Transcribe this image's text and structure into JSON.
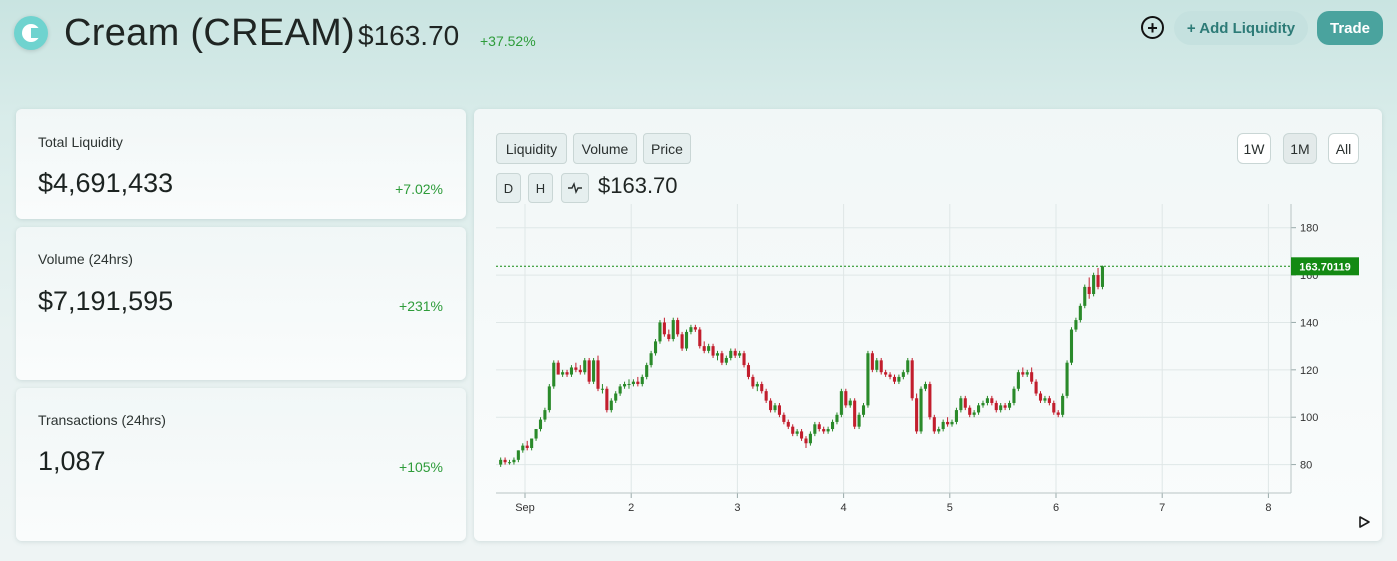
{
  "header": {
    "title": "Cream (CREAM)",
    "price": "$163.70",
    "change": "+37.52%",
    "add_liquidity_label": "+ Add Liquidity",
    "trade_label": "Trade",
    "plus_icon": "plus-circle-icon",
    "logo_icon": "cream-logo-icon"
  },
  "stats": [
    {
      "label": "Total Liquidity",
      "value": "$4,691,433",
      "change": "+7.02%"
    },
    {
      "label": "Volume (24hrs)",
      "value": "$7,191,595",
      "change": "+231%"
    },
    {
      "label": "Transactions (24hrs)",
      "value": "1,087",
      "change": "+105%"
    }
  ],
  "chart_panel": {
    "tabs": [
      "Liquidity",
      "Volume",
      "Price"
    ],
    "intervals": [
      "D",
      "H"
    ],
    "line_icon": "line-chart-icon",
    "ranges": [
      "1W",
      "1M",
      "All"
    ],
    "active_range": "1M",
    "price": "$163.70",
    "last_price_label": "163.70119",
    "play_icon": "play-icon",
    "colors": {
      "up": "#2a8a2a",
      "down": "#c21e2d",
      "last_price_tag": "#138a13"
    }
  },
  "chart_data": {
    "type": "candlestick",
    "title": "",
    "xlabel": "",
    "ylabel": "",
    "x_ticks": [
      "Sep",
      "2",
      "3",
      "4",
      "5",
      "6",
      "7",
      "8"
    ],
    "y_ticks": [
      80,
      100,
      120,
      140,
      160,
      180
    ],
    "ylim": [
      68,
      190
    ],
    "last_price": 163.70119,
    "grid": true,
    "candles_per_day": 24,
    "candles": [
      [
        80,
        83,
        79,
        82
      ],
      [
        82,
        83,
        80,
        81
      ],
      [
        81,
        82,
        80,
        81
      ],
      [
        81,
        83,
        80,
        82
      ],
      [
        82,
        86,
        81,
        86
      ],
      [
        86,
        89,
        85,
        88
      ],
      [
        88,
        90,
        86,
        87
      ],
      [
        87,
        91,
        86,
        91
      ],
      [
        91,
        95,
        90,
        95
      ],
      [
        95,
        100,
        94,
        99
      ],
      [
        99,
        104,
        98,
        103
      ],
      [
        103,
        114,
        102,
        113
      ],
      [
        113,
        124,
        112,
        123
      ],
      [
        123,
        124,
        118,
        118
      ],
      [
        118,
        120,
        117,
        119
      ],
      [
        119,
        120,
        117,
        118
      ],
      [
        118,
        122,
        117,
        121
      ],
      [
        121,
        123,
        119,
        120
      ],
      [
        120,
        122,
        118,
        119
      ],
      [
        119,
        125,
        118,
        124
      ],
      [
        124,
        125,
        114,
        115
      ],
      [
        115,
        125,
        114,
        124
      ],
      [
        124,
        126,
        111,
        112
      ],
      [
        112,
        114,
        110,
        112
      ],
      [
        112,
        113,
        102,
        103
      ],
      [
        103,
        108,
        102,
        107
      ],
      [
        107,
        111,
        106,
        110
      ],
      [
        110,
        114,
        109,
        113
      ],
      [
        113,
        115,
        112,
        114
      ],
      [
        114,
        116,
        112,
        114
      ],
      [
        114,
        116,
        113,
        115
      ],
      [
        115,
        117,
        113,
        114
      ],
      [
        114,
        118,
        113,
        117
      ],
      [
        117,
        123,
        116,
        122
      ],
      [
        122,
        128,
        121,
        127
      ],
      [
        127,
        133,
        126,
        132
      ],
      [
        132,
        141,
        131,
        140
      ],
      [
        140,
        142,
        134,
        135
      ],
      [
        135,
        137,
        132,
        133
      ],
      [
        133,
        142,
        132,
        141
      ],
      [
        141,
        142,
        134,
        135
      ],
      [
        135,
        136,
        128,
        129
      ],
      [
        129,
        137,
        128,
        136
      ],
      [
        136,
        139,
        135,
        138
      ],
      [
        138,
        139,
        136,
        137
      ],
      [
        137,
        138,
        129,
        130
      ],
      [
        130,
        132,
        127,
        128
      ],
      [
        128,
        131,
        127,
        130
      ],
      [
        130,
        131,
        125,
        126
      ],
      [
        126,
        128,
        124,
        127
      ],
      [
        127,
        128,
        122,
        123
      ],
      [
        123,
        126,
        122,
        125
      ],
      [
        125,
        129,
        124,
        128
      ],
      [
        128,
        129,
        125,
        126
      ],
      [
        126,
        128,
        125,
        127
      ],
      [
        127,
        128,
        121,
        122
      ],
      [
        122,
        123,
        116,
        117
      ],
      [
        117,
        118,
        112,
        113
      ],
      [
        113,
        115,
        111,
        114
      ],
      [
        114,
        115,
        110,
        111
      ],
      [
        111,
        112,
        106,
        107
      ],
      [
        107,
        108,
        102,
        103
      ],
      [
        103,
        106,
        102,
        105
      ],
      [
        105,
        106,
        100,
        101
      ],
      [
        101,
        102,
        97,
        98
      ],
      [
        98,
        99,
        95,
        96
      ],
      [
        96,
        97,
        92,
        93
      ],
      [
        93,
        95,
        92,
        94
      ],
      [
        94,
        95,
        90,
        91
      ],
      [
        91,
        92,
        87,
        89
      ],
      [
        89,
        94,
        88,
        93
      ],
      [
        93,
        98,
        92,
        97
      ],
      [
        97,
        98,
        94,
        95
      ],
      [
        95,
        96,
        93,
        94
      ],
      [
        94,
        96,
        93,
        95
      ],
      [
        95,
        99,
        94,
        98
      ],
      [
        98,
        102,
        97,
        101
      ],
      [
        101,
        112,
        100,
        111
      ],
      [
        111,
        112,
        104,
        105
      ],
      [
        105,
        108,
        104,
        107
      ],
      [
        107,
        108,
        95,
        96
      ],
      [
        96,
        102,
        95,
        101
      ],
      [
        101,
        106,
        100,
        105
      ],
      [
        105,
        128,
        104,
        127
      ],
      [
        127,
        128,
        119,
        120
      ],
      [
        120,
        125,
        119,
        124
      ],
      [
        124,
        125,
        118,
        119
      ],
      [
        119,
        120,
        117,
        118
      ],
      [
        118,
        119,
        116,
        117
      ],
      [
        117,
        118,
        114,
        115
      ],
      [
        115,
        118,
        114,
        117
      ],
      [
        117,
        120,
        116,
        119
      ],
      [
        119,
        125,
        118,
        124
      ],
      [
        124,
        125,
        107,
        108
      ],
      [
        108,
        110,
        93,
        94
      ],
      [
        94,
        113,
        93,
        112
      ],
      [
        112,
        115,
        111,
        114
      ],
      [
        114,
        115,
        99,
        100
      ],
      [
        100,
        101,
        93,
        94
      ],
      [
        94,
        96,
        93,
        95
      ],
      [
        95,
        99,
        94,
        98
      ],
      [
        98,
        100,
        96,
        97
      ],
      [
        97,
        99,
        96,
        98
      ],
      [
        98,
        104,
        97,
        103
      ],
      [
        103,
        109,
        102,
        108
      ],
      [
        108,
        109,
        103,
        104
      ],
      [
        104,
        105,
        100,
        101
      ],
      [
        101,
        103,
        100,
        102
      ],
      [
        102,
        106,
        101,
        105
      ],
      [
        105,
        107,
        104,
        106
      ],
      [
        106,
        109,
        105,
        108
      ],
      [
        108,
        109,
        105,
        106
      ],
      [
        106,
        107,
        102,
        103
      ],
      [
        103,
        106,
        102,
        105
      ],
      [
        105,
        106,
        103,
        104
      ],
      [
        104,
        107,
        103,
        106
      ],
      [
        106,
        113,
        105,
        112
      ],
      [
        112,
        120,
        111,
        119
      ],
      [
        119,
        121,
        117,
        118
      ],
      [
        118,
        120,
        117,
        119
      ],
      [
        119,
        121,
        114,
        115
      ],
      [
        115,
        116,
        109,
        110
      ],
      [
        110,
        111,
        106,
        107
      ],
      [
        107,
        109,
        106,
        108
      ],
      [
        108,
        109,
        105,
        106
      ],
      [
        106,
        107,
        101,
        102
      ],
      [
        102,
        103,
        100,
        101
      ],
      [
        101,
        110,
        100,
        109
      ],
      [
        109,
        124,
        108,
        123
      ],
      [
        123,
        138,
        122,
        137
      ],
      [
        137,
        142,
        136,
        141
      ],
      [
        141,
        148,
        140,
        147
      ],
      [
        147,
        156,
        146,
        155
      ],
      [
        155,
        159,
        150,
        152
      ],
      [
        152,
        161,
        151,
        160
      ],
      [
        160,
        163,
        154,
        155
      ],
      [
        155,
        164,
        154,
        163.7
      ]
    ]
  }
}
